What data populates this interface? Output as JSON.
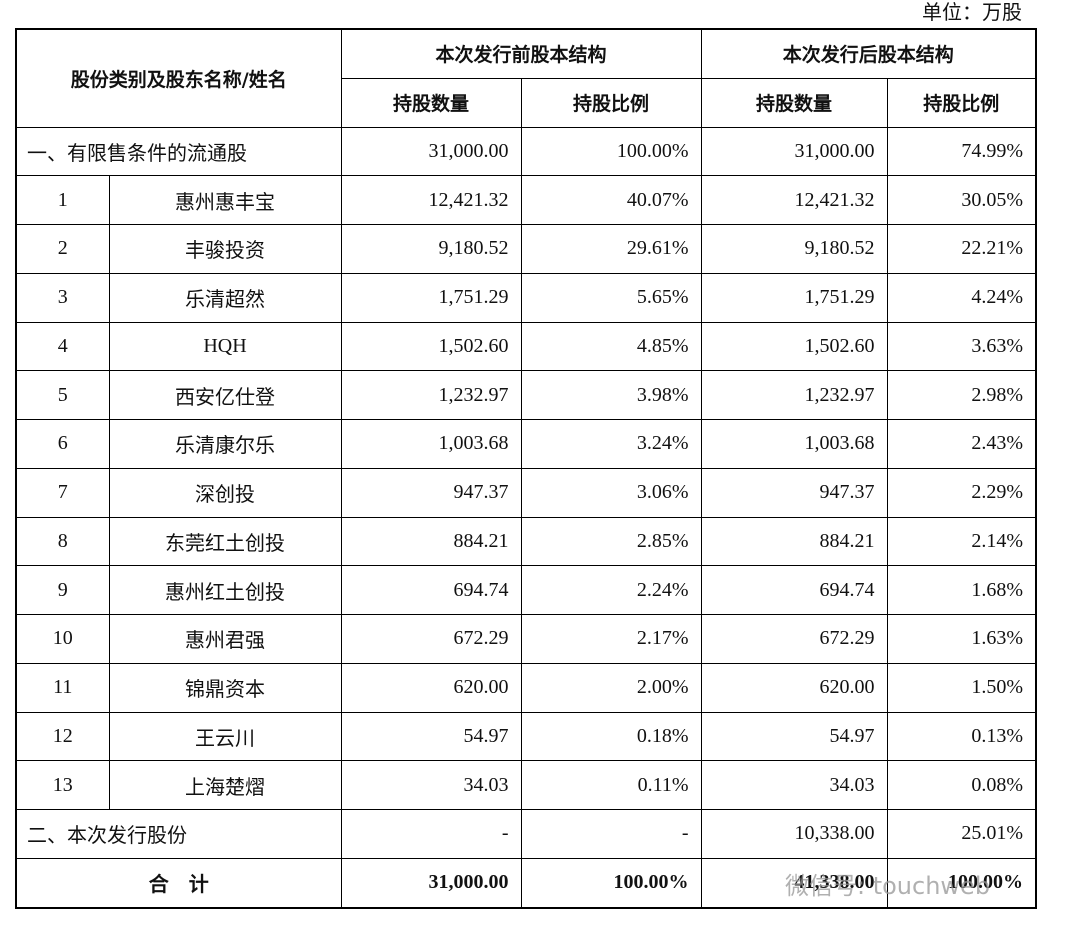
{
  "unit": "单位：万股",
  "table": {
    "header": {
      "category": "股份类别及股东名称/姓名",
      "before": "本次发行前股本结构",
      "after": "本次发行后股本结构",
      "sub": [
        "持股数量",
        "持股比例",
        "持股数量",
        "持股比例"
      ]
    },
    "rows": [
      [
        "一、有限售条件的流通股",
        "31,000.00",
        "100.00%",
        "31,000.00",
        "74.99%"
      ],
      [
        "1",
        "惠州惠丰宝",
        "12,421.32",
        "40.07%",
        "12,421.32",
        "30.05%"
      ],
      [
        "2",
        "丰骏投资",
        "9,180.52",
        "29.61%",
        "9,180.52",
        "22.21%"
      ],
      [
        "3",
        "乐清超然",
        "1,751.29",
        "5.65%",
        "1,751.29",
        "4.24%"
      ],
      [
        "4",
        "HQH",
        "1,502.60",
        "4.85%",
        "1,502.60",
        "3.63%"
      ],
      [
        "5",
        "西安亿仕登",
        "1,232.97",
        "3.98%",
        "1,232.97",
        "2.98%"
      ],
      [
        "6",
        "乐清康尔乐",
        "1,003.68",
        "3.24%",
        "1,003.68",
        "2.43%"
      ],
      [
        "7",
        "深创投",
        "947.37",
        "3.06%",
        "947.37",
        "2.29%"
      ],
      [
        "8",
        "东莞红土创投",
        "884.21",
        "2.85%",
        "884.21",
        "2.14%"
      ],
      [
        "9",
        "惠州红土创投",
        "694.74",
        "2.24%",
        "694.74",
        "1.68%"
      ],
      [
        "10",
        "惠州君强",
        "672.29",
        "2.17%",
        "672.29",
        "1.63%"
      ],
      [
        "11",
        "锦鼎资本",
        "620.00",
        "2.00%",
        "620.00",
        "1.50%"
      ],
      [
        "12",
        "王云川",
        "54.97",
        "0.18%",
        "54.97",
        "0.13%"
      ],
      [
        "13",
        "上海楚熠",
        "34.03",
        "0.11%",
        "34.03",
        "0.08%"
      ],
      [
        "二、本次发行股份",
        "-",
        "-",
        "10,338.00",
        "25.01%"
      ],
      [
        "合　计",
        "31,000.00",
        "100.00%",
        "41,338.00",
        "100.00%"
      ]
    ]
  },
  "watermark": "微信号: touchweb"
}
